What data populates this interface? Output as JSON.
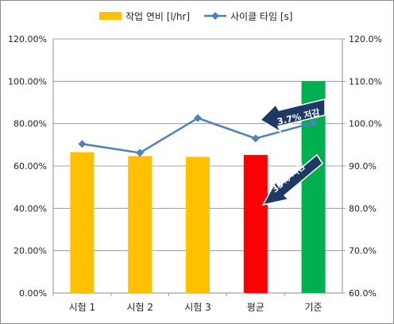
{
  "chart_data": {
    "type": "bar",
    "categories": [
      "시험 1",
      "시험 2",
      "시험 3",
      "평균",
      "기준"
    ],
    "series": [
      {
        "name": "작업 연비 [l/hr]",
        "kind": "bar",
        "axis": "left",
        "values": [
          66.5,
          64.7,
          64.3,
          65.2,
          100.0
        ],
        "colors": [
          "#FFC000",
          "#FFC000",
          "#FFC000",
          "#FF0000",
          "#00B050"
        ]
      },
      {
        "name": "사이클 타임 [s]",
        "kind": "line",
        "axis": "right",
        "color": "#4F81BD",
        "values": [
          95.2,
          93.1,
          101.3,
          96.5,
          100.2
        ]
      }
    ],
    "y_left": {
      "min": 0,
      "max": 120,
      "step": 20,
      "ticks": [
        "0.00%",
        "20.00%",
        "40.00%",
        "60.00%",
        "80.00%",
        "100.00%",
        "120.00%"
      ]
    },
    "y_right": {
      "min": 60,
      "max": 120,
      "step": 10,
      "ticks": [
        "60.0%",
        "70.0%",
        "80.0%",
        "90.0%",
        "100.0%",
        "110.0%",
        "120.0%"
      ]
    },
    "grid": true,
    "legend_position": "top",
    "annotations": [
      {
        "text": "3.7% 저감",
        "color": "#1F3864"
      },
      {
        "text": "35% 저감",
        "color": "#1F3864"
      }
    ]
  }
}
